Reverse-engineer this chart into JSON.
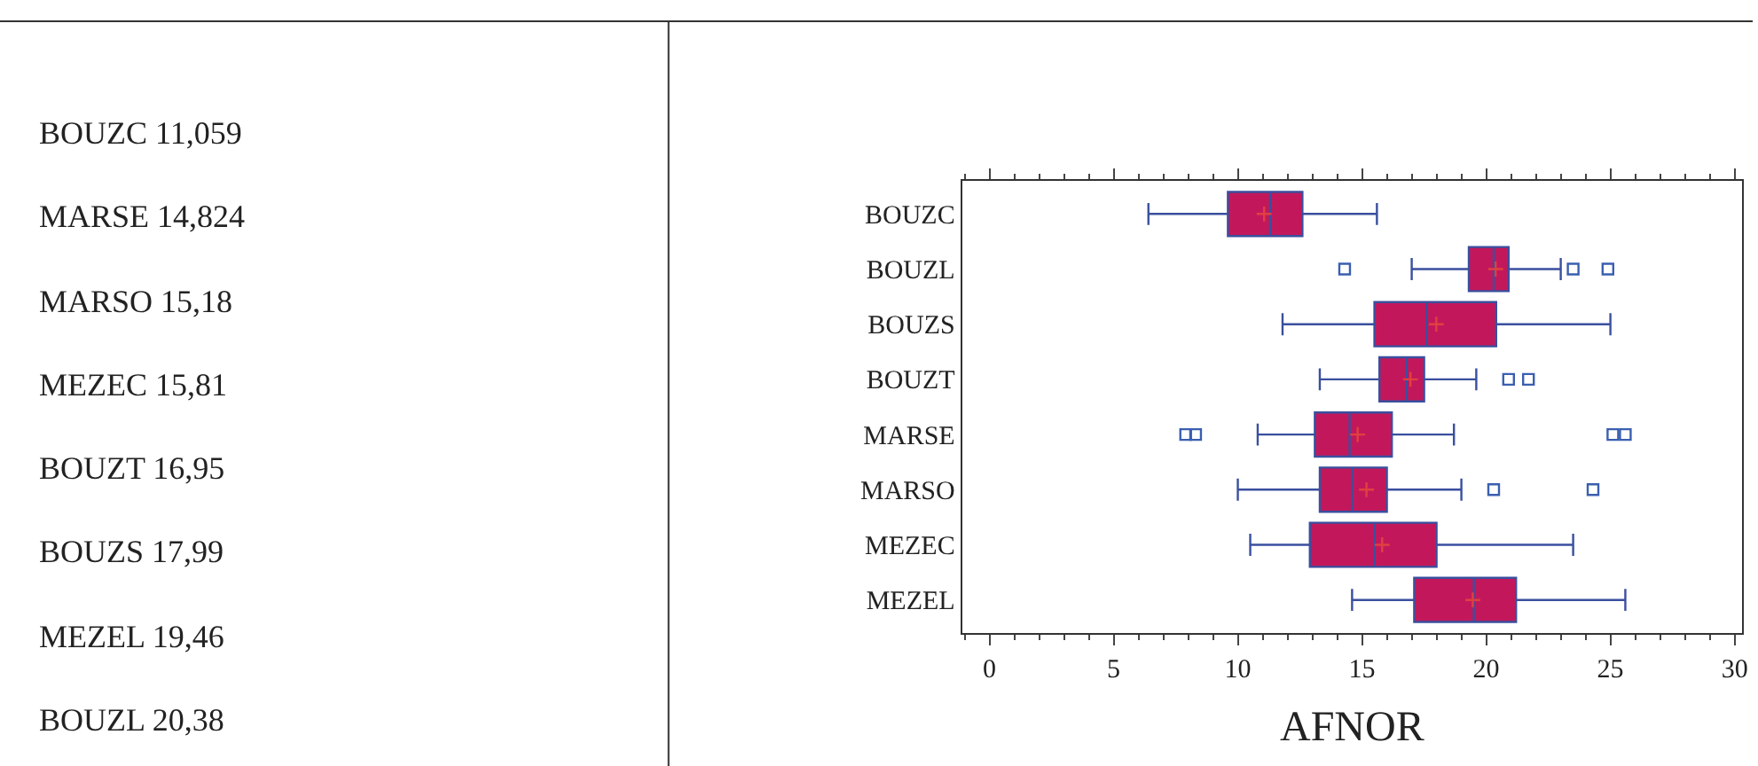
{
  "chart_data": [
    {
      "type": "other",
      "annotations": [
        "BOUZC 11,059",
        "MARSE 14,824",
        "MARSO 15,18",
        "MEZEC 15,81",
        "BOUZT 16,95",
        "BOUZS 17,99",
        "MEZEL 19,46",
        "BOUZL 20,38"
      ]
    },
    {
      "type": "box",
      "orientation": "horizontal",
      "xlabel": "AFNOR",
      "xlim": [
        -1.1,
        30.3
      ],
      "xticks": [
        0,
        5,
        10,
        15,
        20,
        25,
        30
      ],
      "categories": [
        "BOUZC",
        "BOUZL",
        "BOUZS",
        "BOUZT",
        "MARSE",
        "MARSO",
        "MEZEC",
        "MEZEL"
      ],
      "series": [
        {
          "color": "#c2185b",
          "boxes": [
            {
              "low": 6.4,
              "q1": 9.6,
              "median": 11.3,
              "q3": 12.6,
              "high": 15.6,
              "mean": 11.059
            },
            {
              "low": 17.0,
              "q1": 19.3,
              "median": 20.3,
              "q3": 20.9,
              "high": 23.0,
              "mean": 20.38,
              "outliers": [
                14.3,
                23.5,
                24.9
              ]
            },
            {
              "low": 11.8,
              "q1": 15.5,
              "median": 17.6,
              "q3": 20.4,
              "high": 25.0,
              "mean": 17.99
            },
            {
              "low": 13.3,
              "q1": 15.7,
              "median": 16.8,
              "q3": 17.5,
              "high": 19.6,
              "mean": 16.95,
              "outliers": [
                20.9,
                21.7
              ]
            },
            {
              "low": 10.8,
              "q1": 13.1,
              "median": 14.5,
              "q3": 16.2,
              "high": 18.7,
              "mean": 14.824,
              "outliers": [
                7.9,
                8.3,
                25.1,
                25.6
              ]
            },
            {
              "low": 10.0,
              "q1": 13.3,
              "median": 14.6,
              "q3": 16.0,
              "high": 19.0,
              "mean": 15.18,
              "outliers": [
                20.3,
                24.3
              ]
            },
            {
              "low": 10.5,
              "q1": 12.9,
              "median": 15.5,
              "q3": 18.0,
              "high": 23.5,
              "mean": 15.81
            },
            {
              "low": 14.6,
              "q1": 17.1,
              "median": 19.5,
              "q3": 21.2,
              "high": 25.6,
              "mean": 19.46
            }
          ]
        }
      ]
    }
  ]
}
